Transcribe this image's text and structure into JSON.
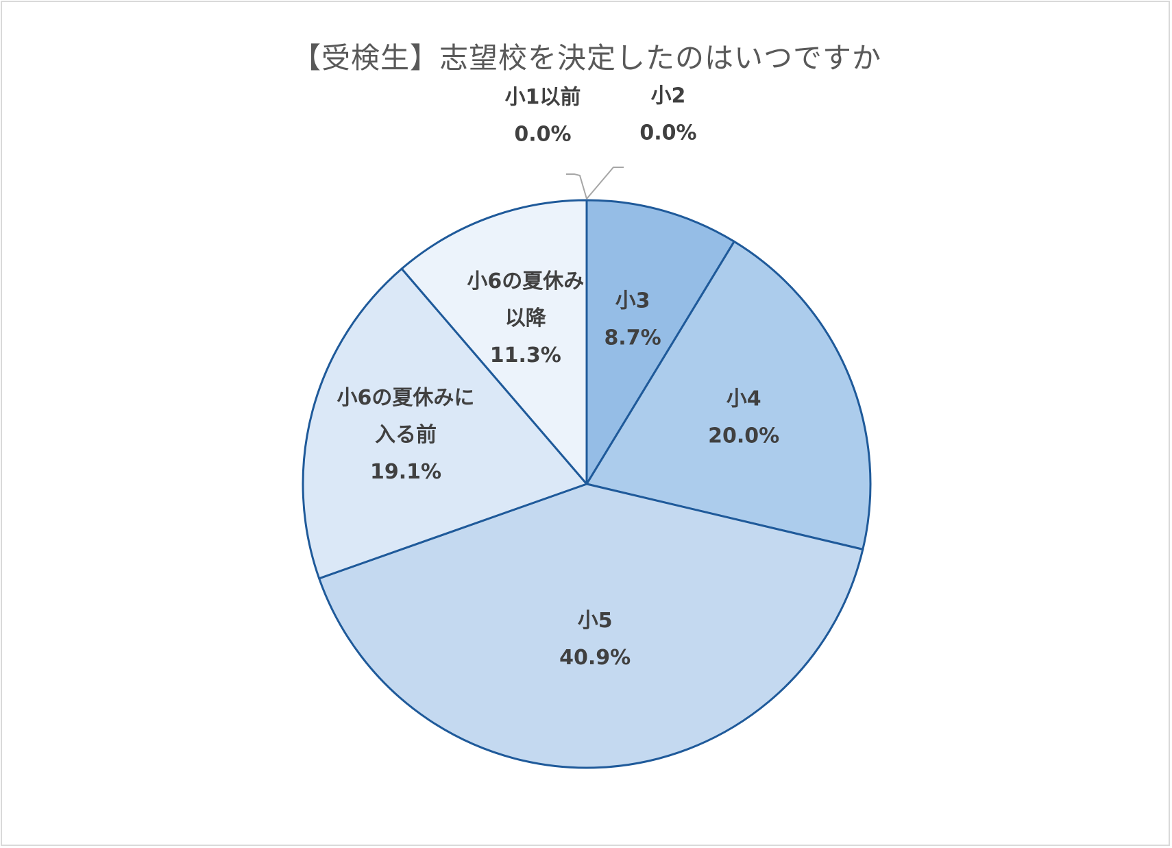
{
  "chart_data": {
    "type": "pie",
    "title": "【受検生】志望校を決定したのはいつですか",
    "start_angle_deg": 0,
    "direction": "clockwise",
    "slices": [
      {
        "label": [
          "小1以前"
        ],
        "value": 0.0,
        "percent_label": "0.0%",
        "color": "#e8f0fa"
      },
      {
        "label": [
          "小2"
        ],
        "value": 0.0,
        "percent_label": "0.0%",
        "color": "#dce8f6"
      },
      {
        "label": [
          "小3"
        ],
        "value": 8.7,
        "percent_label": "8.7%",
        "color": "#95bde6"
      },
      {
        "label": [
          "小4"
        ],
        "value": 20.0,
        "percent_label": "20.0%",
        "color": "#acccec"
      },
      {
        "label": [
          "小5"
        ],
        "value": 40.9,
        "percent_label": "40.9%",
        "color": "#c4d9f0"
      },
      {
        "label": [
          "小6の夏休みに",
          "入る前"
        ],
        "value": 19.1,
        "percent_label": "19.1%",
        "color": "#dbe8f7"
      },
      {
        "label": [
          "小6の夏休み",
          "以降"
        ],
        "value": 11.3,
        "percent_label": "11.3%",
        "color": "#ecf3fb"
      }
    ],
    "edge_color": "#1f5a9a",
    "leader_line_color": "#a6a6a6",
    "label_color": "#404040",
    "legend": "none"
  }
}
